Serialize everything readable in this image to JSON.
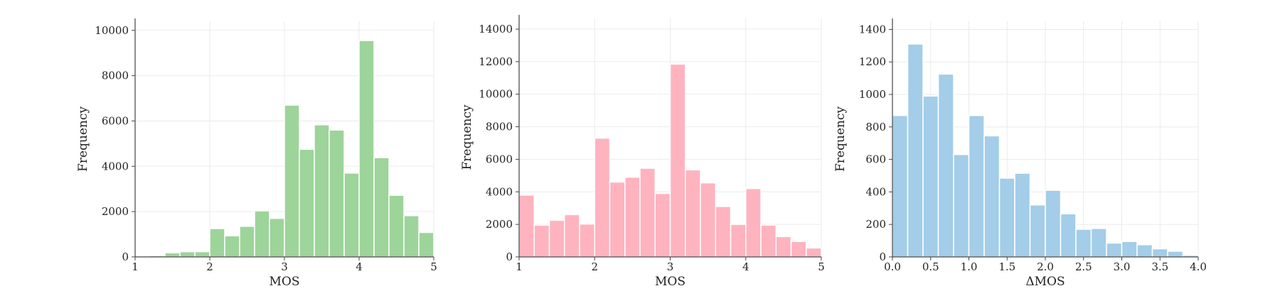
{
  "chart_data": [
    {
      "type": "bar",
      "subtype": "histogram",
      "xlabel": "MOS",
      "ylabel": "Frequency",
      "xlim": [
        1,
        5
      ],
      "ylim": [
        0,
        10400
      ],
      "xticks": [
        1,
        2,
        3,
        4,
        5
      ],
      "yticks": [
        0,
        2000,
        4000,
        6000,
        8000,
        10000
      ],
      "xtick_labels": [
        "1",
        "2",
        "3",
        "4",
        "5"
      ],
      "ytick_labels": [
        "0",
        "2000",
        "4000",
        "6000",
        "8000",
        "10000"
      ],
      "grid": true,
      "color": "#9dd49a",
      "bin_edges": [
        1.0,
        1.2,
        1.4,
        1.6,
        1.8,
        2.0,
        2.2,
        2.4,
        2.6,
        2.8,
        3.0,
        3.2,
        3.4,
        3.6,
        3.8,
        4.0,
        4.2,
        4.4,
        4.6,
        4.8,
        5.0
      ],
      "values": [
        0,
        60,
        180,
        230,
        230,
        1250,
        930,
        1350,
        2030,
        1700,
        6700,
        4750,
        5830,
        5600,
        3700,
        9550,
        4380,
        2720,
        1820,
        1080
      ]
    },
    {
      "type": "bar",
      "subtype": "histogram",
      "xlabel": "MOS",
      "ylabel": "Frequency",
      "xlim": [
        1,
        5
      ],
      "ylim": [
        0,
        14700
      ],
      "xticks": [
        1,
        2,
        3,
        4,
        5
      ],
      "yticks": [
        0,
        2000,
        4000,
        6000,
        8000,
        10000,
        12000,
        14000
      ],
      "xtick_labels": [
        "1",
        "2",
        "3",
        "4",
        "5"
      ],
      "ytick_labels": [
        "0",
        "2000",
        "4000",
        "6000",
        "8000",
        "10000",
        "12000",
        "14000"
      ],
      "grid": true,
      "color": "#ffb3bf",
      "bin_edges": [
        1.0,
        1.2,
        1.4,
        1.6,
        1.8,
        2.0,
        2.2,
        2.4,
        2.6,
        2.8,
        3.0,
        3.2,
        3.4,
        3.6,
        3.8,
        4.0,
        4.2,
        4.4,
        4.6,
        4.8,
        5.0
      ],
      "values": [
        3800,
        1950,
        2250,
        2600,
        2020,
        7300,
        4600,
        4900,
        5450,
        3900,
        11850,
        5350,
        4550,
        3100,
        2000,
        4200,
        1950,
        1250,
        950,
        550
      ]
    },
    {
      "type": "bar",
      "subtype": "histogram",
      "xlabel": "ΔMOS",
      "ylabel": "Frequency",
      "xlim": [
        0,
        4
      ],
      "ylim": [
        0,
        1450
      ],
      "xticks": [
        0,
        0.5,
        1,
        1.5,
        2,
        2.5,
        3,
        3.5,
        4
      ],
      "yticks": [
        0,
        200,
        400,
        600,
        800,
        1000,
        1200,
        1400
      ],
      "xtick_labels": [
        "0.0",
        "0.5",
        "1.0",
        "1.5",
        "2.0",
        "2.5",
        "3.0",
        "3.5",
        "4.0"
      ],
      "ytick_labels": [
        "0",
        "200",
        "400",
        "600",
        "800",
        "1000",
        "1200",
        "1400"
      ],
      "grid": true,
      "color": "#a3cde8",
      "bin_edges": [
        0.0,
        0.2,
        0.4,
        0.6,
        0.8,
        1.0,
        1.2,
        1.4,
        1.6,
        1.8,
        2.0,
        2.2,
        2.4,
        2.6,
        2.8,
        3.0,
        3.2,
        3.4,
        3.6,
        3.8,
        4.0
      ],
      "values": [
        870,
        1310,
        990,
        1125,
        630,
        870,
        745,
        485,
        515,
        320,
        410,
        265,
        170,
        175,
        85,
        95,
        75,
        50,
        35,
        10
      ]
    }
  ]
}
